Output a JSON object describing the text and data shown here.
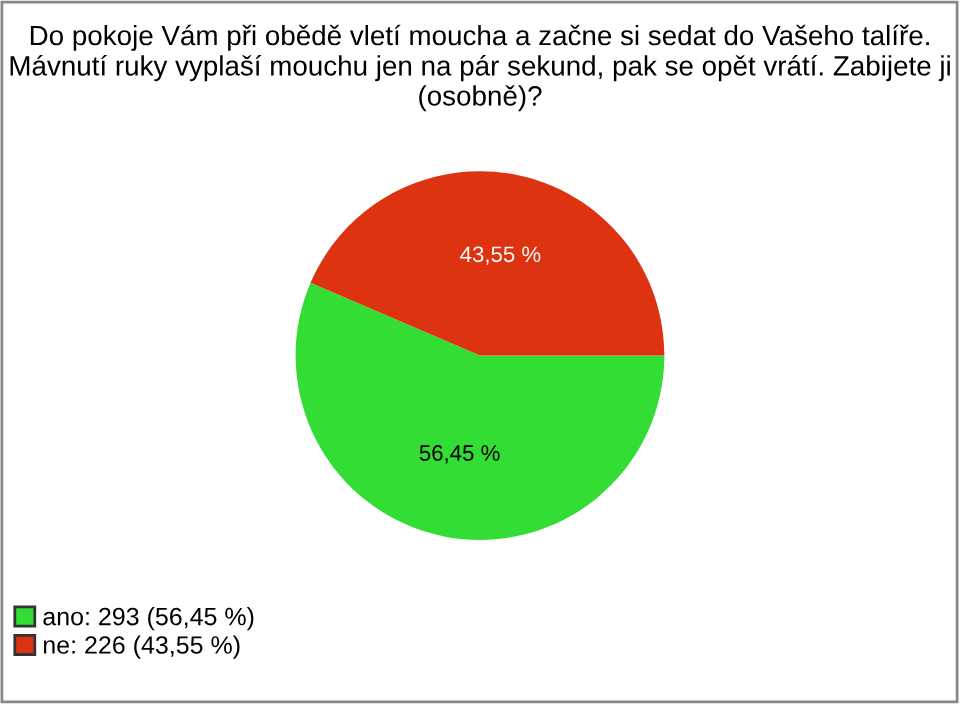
{
  "chart_data": {
    "type": "pie",
    "title": "Do pokoje Vám při obědě vletí moucha a začne si sedat do Vašeho talíře. Mávnutí ruky vyplaší mouchu jen na pár sekund, pak se opět vrátí. Zabijete ji (osobně)?",
    "categories": [
      "ano: 293 (56,45 %)",
      "ne: 226 (43,55 %)"
    ],
    "values": [
      56.45,
      43.55
    ],
    "value_labels": [
      "56,45 %",
      "43,55 %"
    ],
    "colors": [
      "#33dd33",
      "#dd3311"
    ],
    "legend": "bottom left"
  }
}
